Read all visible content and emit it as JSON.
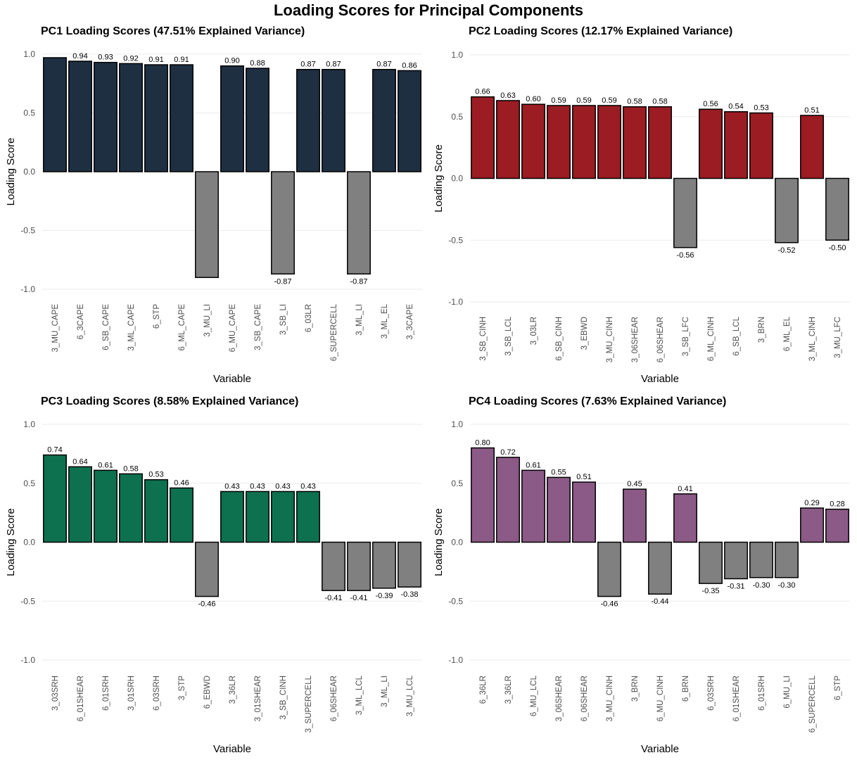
{
  "title": "Loading Scores for Principal Components",
  "colors": {
    "pc1": "#1e2f42",
    "pc2": "#9b1c23",
    "pc3": "#0d7150",
    "pc4": "#8b5a86",
    "negative": "#808080",
    "outline": "#000000"
  },
  "chart_data": [
    {
      "type": "bar",
      "title": "PC1 Loading Scores (47.51% Explained Variance)",
      "xlabel": "Variable",
      "ylabel": "Loading Score",
      "ylim": [
        -1.0,
        1.0
      ],
      "yticks": [
        "1.0",
        "0.5",
        "0.0",
        "-0.5",
        "-1.0"
      ],
      "categories": [
        "3_MU_CAPE",
        "6_3CAPE",
        "6_SB_CAPE",
        "3_ML_CAPE",
        "6_STP",
        "6_ML_CAPE",
        "3_MU_LI",
        "6_MU_CAPE",
        "3_SB_CAPE",
        "3_SB_LI",
        "6_03LR",
        "6_SUPERCELL",
        "3_ML_LI",
        "3_ML_EL",
        "3_3CAPE"
      ],
      "values": [
        0.97,
        0.94,
        0.93,
        0.92,
        0.91,
        0.91,
        -0.9,
        0.9,
        0.88,
        -0.87,
        0.87,
        0.87,
        -0.87,
        0.87,
        0.86
      ],
      "labels": [
        "",
        "0.94",
        "0.93",
        "0.92",
        "0.91",
        "0.91",
        "",
        "0.90",
        "0.88",
        "-0.87",
        "0.87",
        "0.87",
        "-0.87",
        "0.87",
        "0.86"
      ],
      "color_key": "pc1"
    },
    {
      "type": "bar",
      "title": "PC2 Loading Scores (12.17% Explained Variance)",
      "xlabel": "Variable",
      "ylabel": "Loading Score",
      "ylim": [
        -1.0,
        1.0
      ],
      "yticks": [
        "1.0",
        "0.5",
        "0.0",
        "-0.5",
        "-1.0"
      ],
      "categories": [
        "3_SB_CINH",
        "3_SB_LCL",
        "3_03LR",
        "6_SB_CINH",
        "3_EBWD",
        "3_MU_CINH",
        "3_06SHEAR",
        "6_06SHEAR",
        "3_SB_LFC",
        "6_ML_CINH",
        "6_SB_LCL",
        "3_BRN",
        "6_ML_EL",
        "3_ML_CINH",
        "3_MU_LFC"
      ],
      "values": [
        0.66,
        0.63,
        0.6,
        0.59,
        0.59,
        0.59,
        0.58,
        0.58,
        -0.56,
        0.56,
        0.54,
        0.53,
        -0.52,
        0.51,
        -0.5
      ],
      "labels": [
        "0.66",
        "0.63",
        "0.60",
        "0.59",
        "0.59",
        "0.59",
        "0.58",
        "0.58",
        "-0.56",
        "0.56",
        "0.54",
        "0.53",
        "-0.52",
        "0.51",
        "-0.50"
      ],
      "color_key": "pc2"
    },
    {
      "type": "bar",
      "title": "PC3 Loading Scores (8.58% Explained Variance)",
      "xlabel": "Variable",
      "ylabel": "Loading Score",
      "ylim": [
        -1.0,
        1.0
      ],
      "yticks": [
        "1.0",
        "0.5",
        "0.0",
        "-0.5",
        "-1.0"
      ],
      "categories": [
        "3_03SRH",
        "6_01SHEAR",
        "6_01SRH",
        "3_01SRH",
        "6_03SRH",
        "3_STP",
        "6_EBWD",
        "3_36LR",
        "3_01SHEAR",
        "3_SB_CINH",
        "3_SUPERCELL",
        "6_06SHEAR",
        "3_ML_LCL",
        "3_ML_LI",
        "3_MU_LCL"
      ],
      "values": [
        0.74,
        0.64,
        0.61,
        0.58,
        0.53,
        0.46,
        -0.46,
        0.43,
        0.43,
        0.43,
        0.43,
        -0.41,
        -0.41,
        -0.39,
        -0.38
      ],
      "labels": [
        "0.74",
        "0.64",
        "0.61",
        "0.58",
        "0.53",
        "0.46",
        "-0.46",
        "0.43",
        "0.43",
        "0.43",
        "0.43",
        "-0.41",
        "-0.41",
        "-0.39",
        "-0.38"
      ],
      "color_key": "pc3"
    },
    {
      "type": "bar",
      "title": "PC4 Loading Scores (7.63% Explained Variance)",
      "xlabel": "Variable",
      "ylabel": "Loading Score",
      "ylim": [
        -1.0,
        1.0
      ],
      "yticks": [
        "1.0",
        "0.5",
        "0.0",
        "-0.5",
        "-1.0"
      ],
      "categories": [
        "6_36LR",
        "3_36LR",
        "6_MU_LCL",
        "3_06SHEAR",
        "6_06SHEAR",
        "3_MU_CINH",
        "3_BRN",
        "6_MU_CINH",
        "6_BRN",
        "6_03SRH",
        "6_01SHEAR",
        "6_01SRH",
        "6_MU_LI",
        "6_SUPERCELL",
        "6_STP"
      ],
      "values": [
        0.8,
        0.72,
        0.61,
        0.55,
        0.51,
        -0.46,
        0.45,
        -0.44,
        0.41,
        -0.35,
        -0.31,
        -0.3,
        -0.3,
        0.29,
        0.28
      ],
      "labels": [
        "0.80",
        "0.72",
        "0.61",
        "0.55",
        "0.51",
        "-0.46",
        "0.45",
        "-0.44",
        "0.41",
        "-0.35",
        "-0.31",
        "-0.30",
        "-0.30",
        "0.29",
        "0.28"
      ],
      "color_key": "pc4"
    }
  ]
}
